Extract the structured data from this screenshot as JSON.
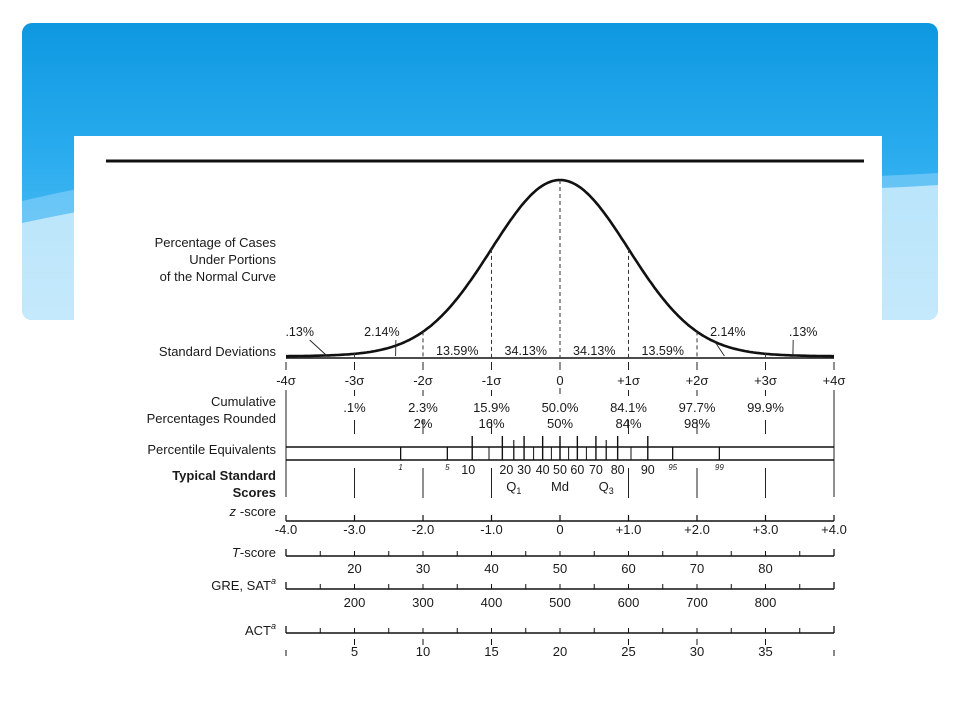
{
  "figure": {
    "row_labels": {
      "cases": [
        "Percentage of Cases",
        "Under Portions",
        "of the Normal Curve"
      ],
      "std_dev": "Standard Deviations",
      "cumulative": [
        "Cumulative",
        "Percentages Rounded"
      ],
      "percentile": "Percentile Equivalents",
      "typical": [
        "Typical Standard",
        "Scores"
      ],
      "zscore": "z-score",
      "tscore": "T-score",
      "gre": "GRE, SAT",
      "act": "ACT",
      "superscript": "a"
    },
    "area_percentages": [
      {
        "label": ".13%",
        "x": -3.55
      },
      {
        "label": "2.14%",
        "x": -2.65
      },
      {
        "label": "13.59%",
        "x": -1.5
      },
      {
        "label": "34.13%",
        "x": -0.5
      },
      {
        "label": "34.13%",
        "x": 0.5
      },
      {
        "label": "13.59%",
        "x": 1.5
      },
      {
        "label": "2.14%",
        "x": 2.65
      },
      {
        "label": ".13%",
        "x": 3.55
      }
    ],
    "sigma_labels": [
      "-4σ",
      "-3σ",
      "-2σ",
      "-1σ",
      "0",
      "+1σ",
      "+2σ",
      "+3σ",
      "+4σ"
    ],
    "cumulative_pct": [
      "0.1%",
      "2.3%",
      "15.9%",
      "50.0%",
      "84.1%",
      "97.7%",
      "99.9%"
    ],
    "cumulative_pct_display": [
      ".1%",
      "2.3%",
      "15.9%",
      "50.0%",
      "84.1%",
      "97.7%",
      "99.9%"
    ],
    "cumulative_rounded": [
      "2%",
      "16%",
      "50%",
      "84%",
      "98%"
    ],
    "percentiles_small": [
      {
        "p": 1,
        "label": "1"
      },
      {
        "p": 5,
        "label": "5"
      },
      {
        "p": 95,
        "label": "95"
      },
      {
        "p": 99,
        "label": "99"
      }
    ],
    "percentiles_large": [
      10,
      20,
      30,
      40,
      50,
      60,
      70,
      80,
      90
    ],
    "percentile_markers": [
      {
        "label": "Q1",
        "sub": "1",
        "base": "Q",
        "p": 25
      },
      {
        "label": "Md",
        "sub": "",
        "base": "Md",
        "p": 50
      },
      {
        "label": "Q3",
        "sub": "3",
        "base": "Q",
        "p": 75
      }
    ],
    "zscores": [
      "-4.0",
      "-3.0",
      "-2.0",
      "-1.0",
      "0",
      "+1.0",
      "+2.0",
      "+3.0",
      "+4.0"
    ],
    "tscores": [
      "20",
      "30",
      "40",
      "50",
      "60",
      "70",
      "80"
    ],
    "gre_sat": [
      "200",
      "300",
      "400",
      "500",
      "600",
      "700",
      "800"
    ],
    "act": [
      {
        "value": "5",
        "z": -3.0
      },
      {
        "value": "10",
        "z": -2.0
      },
      {
        "value": "15",
        "z": -1.0
      },
      {
        "value": "20",
        "z": 0.0
      },
      {
        "value": "25",
        "z": 1.0
      },
      {
        "value": "30",
        "z": 2.0
      },
      {
        "value": "35",
        "z": 3.0
      }
    ]
  }
}
